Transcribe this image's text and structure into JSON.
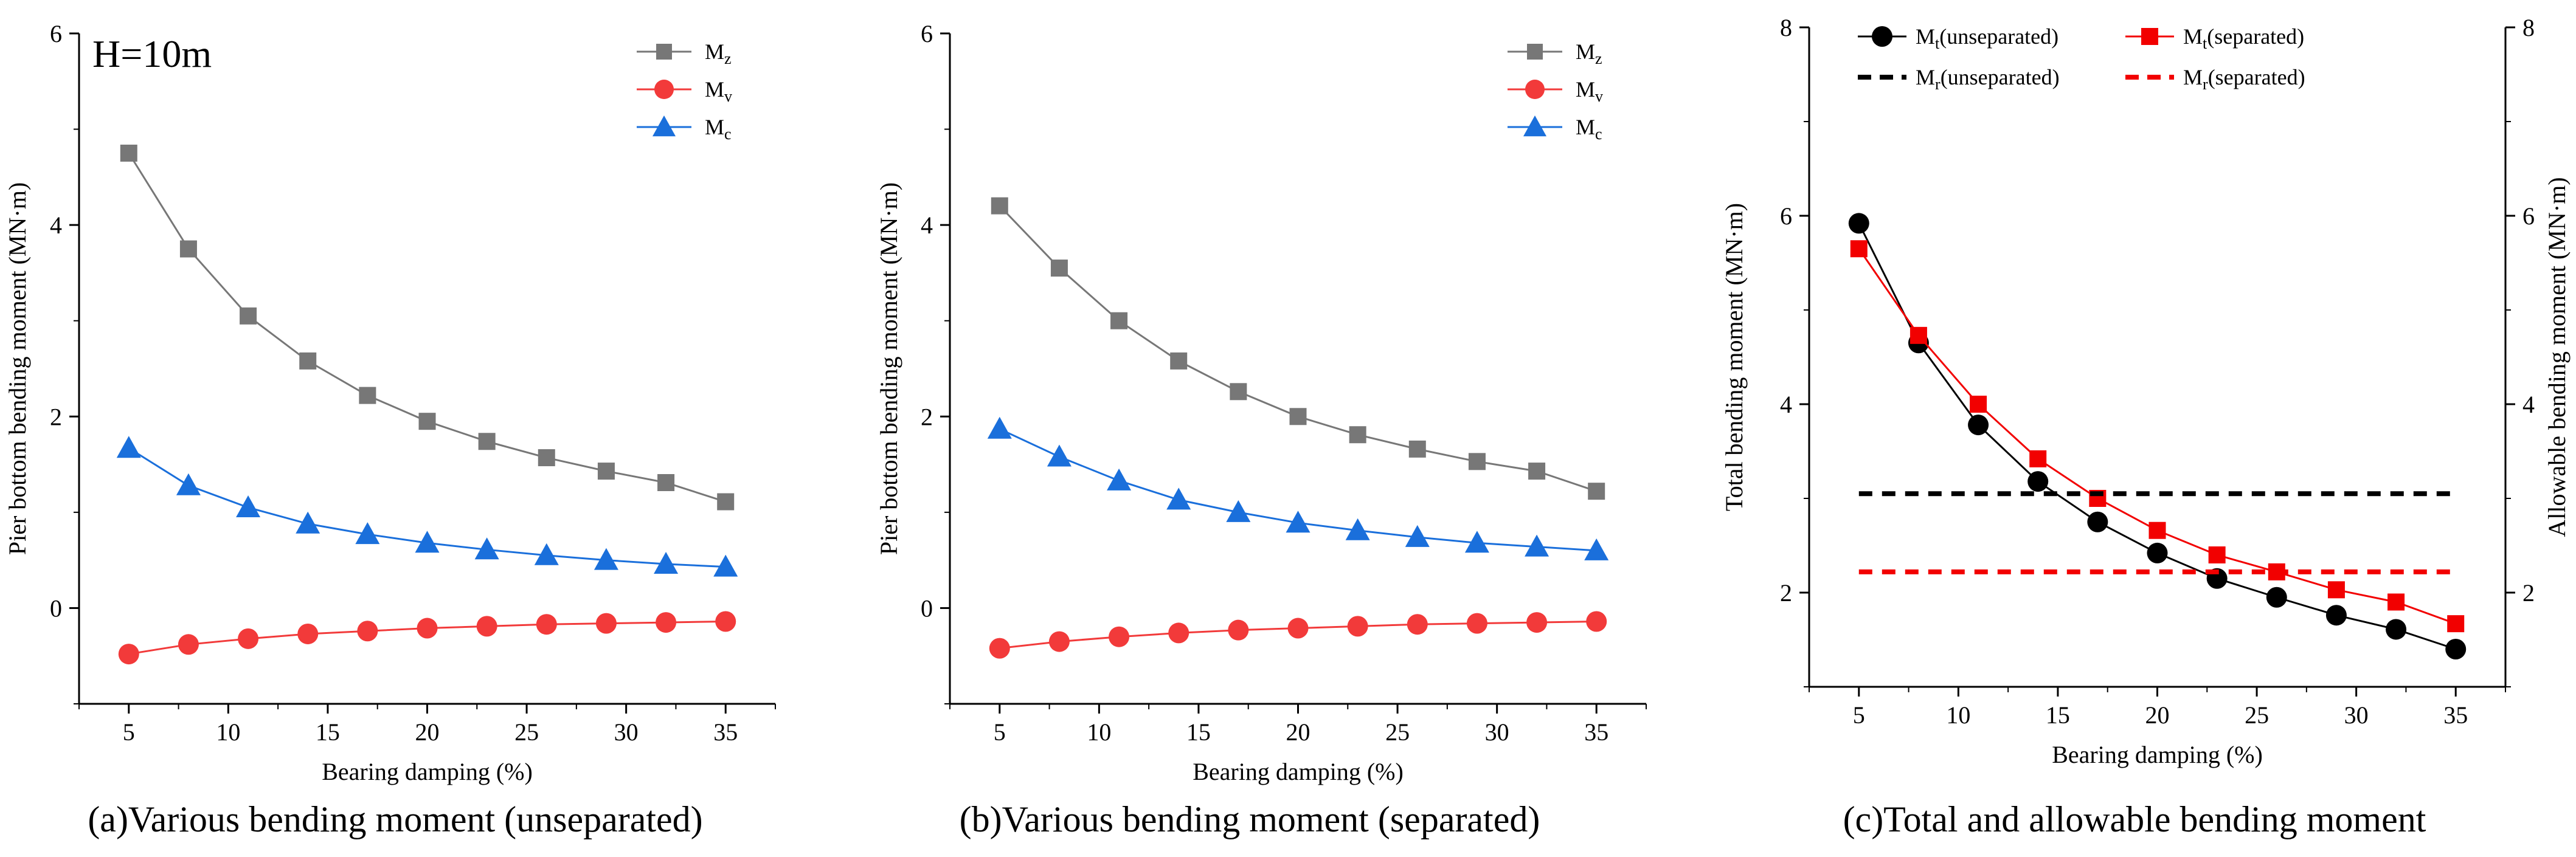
{
  "chart_data": [
    {
      "type": "line",
      "id": "a",
      "caption": "(a)Various bending moment (unseparated)",
      "annotation": "H=10m",
      "xlabel": "Bearing damping (%)",
      "ylabel": "Pier bottom bending moment (MN·m)",
      "xlim": [
        2.5,
        37.5
      ],
      "ylim": [
        -1,
        6
      ],
      "xticks": [
        5,
        10,
        15,
        20,
        25,
        30,
        35
      ],
      "yticks": [
        0,
        2,
        4,
        6
      ],
      "x": [
        5,
        8,
        11,
        14,
        17,
        20,
        23,
        26,
        29,
        32,
        35
      ],
      "legend_position": "top-right",
      "series": [
        {
          "name": "M",
          "sub": "z",
          "color": "#777777",
          "marker": "square",
          "values": [
            4.75,
            3.75,
            3.05,
            2.58,
            2.22,
            1.95,
            1.74,
            1.57,
            1.43,
            1.31,
            1.11
          ]
        },
        {
          "name": "M",
          "sub": "v",
          "color": "#f23a3a",
          "marker": "circle",
          "values": [
            -0.48,
            -0.38,
            -0.32,
            -0.27,
            -0.24,
            -0.21,
            -0.19,
            -0.17,
            -0.16,
            -0.15,
            -0.14
          ]
        },
        {
          "name": "M",
          "sub": "c",
          "color": "#1a6fdb",
          "marker": "triangle",
          "values": [
            1.67,
            1.28,
            1.05,
            0.88,
            0.77,
            0.68,
            0.61,
            0.55,
            0.5,
            0.46,
            0.43
          ]
        }
      ]
    },
    {
      "type": "line",
      "id": "b",
      "caption": "(b)Various bending moment (separated)",
      "xlabel": "Bearing damping (%)",
      "ylabel": "Pier bottom bending moment (MN·m)",
      "xlim": [
        2.5,
        37.5
      ],
      "ylim": [
        -1,
        6
      ],
      "xticks": [
        5,
        10,
        15,
        20,
        25,
        30,
        35
      ],
      "yticks": [
        0,
        2,
        4,
        6
      ],
      "x": [
        5,
        8,
        11,
        14,
        17,
        20,
        23,
        26,
        29,
        32,
        35
      ],
      "legend_position": "top-right",
      "series": [
        {
          "name": "M",
          "sub": "z",
          "color": "#777777",
          "marker": "square",
          "values": [
            4.2,
            3.55,
            3.0,
            2.58,
            2.26,
            2.0,
            1.81,
            1.66,
            1.53,
            1.43,
            1.22
          ]
        },
        {
          "name": "M",
          "sub": "v",
          "color": "#f23a3a",
          "marker": "circle",
          "values": [
            -0.42,
            -0.35,
            -0.3,
            -0.26,
            -0.23,
            -0.21,
            -0.19,
            -0.17,
            -0.16,
            -0.15,
            -0.14
          ]
        },
        {
          "name": "M",
          "sub": "c",
          "color": "#1a6fdb",
          "marker": "triangle",
          "values": [
            1.87,
            1.58,
            1.33,
            1.13,
            1.0,
            0.89,
            0.81,
            0.74,
            0.68,
            0.64,
            0.6
          ]
        }
      ]
    },
    {
      "type": "line",
      "id": "c",
      "caption": "(c)Total and allowable bending moment",
      "xlabel": "Bearing damping (%)",
      "ylabel": "Total bending moment (MN·m)",
      "y2label": "Allowable bending moment (MN·m)",
      "xlim": [
        2.5,
        37.5
      ],
      "ylim": [
        1,
        8
      ],
      "y2lim": [
        1,
        8
      ],
      "xticks": [
        5,
        10,
        15,
        20,
        25,
        30,
        35
      ],
      "yticks": [
        2,
        4,
        6,
        8
      ],
      "y2ticks": [
        2,
        4,
        6,
        8
      ],
      "x": [
        5,
        8,
        11,
        14,
        17,
        20,
        23,
        26,
        29,
        32,
        35
      ],
      "legend_position": "top",
      "series": [
        {
          "name": "M",
          "sub": "t",
          "suffix": "(unseparated)",
          "color": "#000000",
          "marker": "circle",
          "style": "solid",
          "values": [
            5.92,
            4.65,
            3.78,
            3.18,
            2.75,
            2.42,
            2.15,
            1.95,
            1.76,
            1.61,
            1.4
          ]
        },
        {
          "name": "M",
          "sub": "t",
          "suffix": "(separated)",
          "color": "#f20000",
          "marker": "square",
          "style": "solid",
          "values": [
            5.65,
            4.73,
            4.0,
            3.42,
            3.0,
            2.66,
            2.4,
            2.22,
            2.03,
            1.9,
            1.67
          ]
        },
        {
          "name": "M",
          "sub": "r",
          "suffix": "(unseparated)",
          "color": "#000000",
          "marker": "none",
          "style": "dashed",
          "values": [
            3.05,
            3.05,
            3.05,
            3.05,
            3.05,
            3.05,
            3.05,
            3.05,
            3.05,
            3.05,
            3.05
          ]
        },
        {
          "name": "M",
          "sub": "r",
          "suffix": "(separated)",
          "color": "#f20000",
          "marker": "none",
          "style": "dashed",
          "values": [
            2.22,
            2.22,
            2.22,
            2.22,
            2.22,
            2.22,
            2.22,
            2.22,
            2.22,
            2.22,
            2.22
          ]
        }
      ]
    }
  ]
}
